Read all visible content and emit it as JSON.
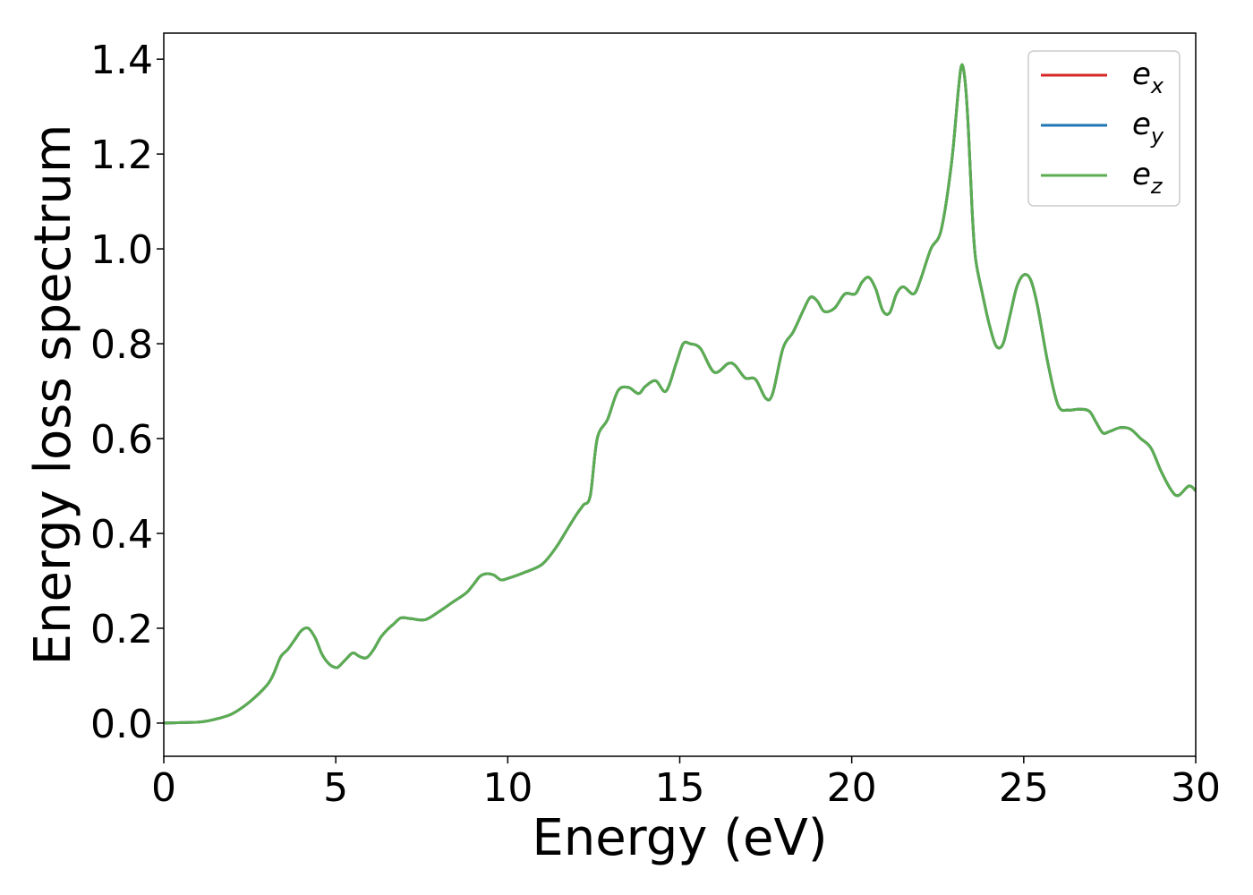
{
  "chart_data": {
    "type": "line",
    "xlabel": "Energy (eV)",
    "ylabel": "Energy loss spectrum",
    "xlim": [
      0,
      30
    ],
    "ylim": [
      -0.07,
      1.455
    ],
    "xticks": [
      0,
      5,
      10,
      15,
      20,
      25,
      30
    ],
    "xtick_labels": [
      "0",
      "5",
      "10",
      "15",
      "20",
      "25",
      "30"
    ],
    "yticks": [
      0.0,
      0.2,
      0.4,
      0.6,
      0.8,
      1.0,
      1.2,
      1.4
    ],
    "ytick_labels": [
      "0.0",
      "0.2",
      "0.4",
      "0.6",
      "0.8",
      "1.0",
      "1.2",
      "1.4"
    ],
    "grid": false,
    "legend_position": "top-right",
    "x": [
      0,
      0.5,
      1.0,
      1.3,
      1.6,
      2.0,
      2.5,
      3.0,
      3.2,
      3.4,
      3.6,
      3.8,
      4.0,
      4.2,
      4.4,
      4.6,
      4.8,
      5.0,
      5.1,
      5.3,
      5.5,
      5.7,
      5.9,
      6.1,
      6.3,
      6.5,
      6.7,
      6.9,
      7.2,
      7.6,
      8.0,
      8.4,
      8.8,
      9.0,
      9.2,
      9.4,
      9.6,
      9.8,
      10.0,
      10.5,
      11.0,
      11.4,
      11.7,
      12.0,
      12.2,
      12.4,
      12.6,
      12.9,
      13.2,
      13.5,
      13.8,
      14.0,
      14.3,
      14.6,
      14.9,
      15.1,
      15.3,
      15.6,
      16.0,
      16.4,
      16.6,
      16.9,
      17.2,
      17.5,
      17.7,
      18.0,
      18.3,
      18.6,
      18.8,
      19.0,
      19.2,
      19.5,
      19.8,
      20.1,
      20.3,
      20.5,
      20.7,
      20.9,
      21.1,
      21.3,
      21.5,
      21.8,
      22.0,
      22.3,
      22.6,
      22.9,
      23.1,
      23.2,
      23.3,
      23.4,
      23.5,
      23.6,
      23.8,
      24.0,
      24.2,
      24.4,
      24.6,
      24.8,
      25.0,
      25.2,
      25.4,
      25.7,
      26.0,
      26.3,
      26.6,
      26.9,
      27.1,
      27.3,
      27.5,
      27.8,
      28.1,
      28.4,
      28.7,
      29.0,
      29.3,
      29.5,
      29.8,
      30.0
    ],
    "series": [
      {
        "name": "ex",
        "color": "#d62728",
        "values": [
          0,
          0.001,
          0.002,
          0.005,
          0.01,
          0.02,
          0.045,
          0.08,
          0.105,
          0.14,
          0.155,
          0.175,
          0.195,
          0.2,
          0.18,
          0.145,
          0.125,
          0.117,
          0.12,
          0.135,
          0.148,
          0.14,
          0.138,
          0.155,
          0.18,
          0.197,
          0.21,
          0.222,
          0.22,
          0.218,
          0.235,
          0.255,
          0.275,
          0.292,
          0.31,
          0.315,
          0.312,
          0.302,
          0.305,
          0.318,
          0.335,
          0.37,
          0.405,
          0.44,
          0.46,
          0.48,
          0.6,
          0.64,
          0.7,
          0.708,
          0.695,
          0.71,
          0.722,
          0.7,
          0.76,
          0.8,
          0.8,
          0.79,
          0.74,
          0.758,
          0.755,
          0.728,
          0.725,
          0.685,
          0.695,
          0.79,
          0.825,
          0.872,
          0.898,
          0.89,
          0.868,
          0.875,
          0.905,
          0.905,
          0.93,
          0.94,
          0.915,
          0.87,
          0.865,
          0.905,
          0.92,
          0.905,
          0.935,
          1.0,
          1.04,
          1.18,
          1.335,
          1.388,
          1.35,
          1.24,
          1.08,
          0.98,
          0.905,
          0.84,
          0.795,
          0.8,
          0.86,
          0.92,
          0.945,
          0.935,
          0.88,
          0.76,
          0.67,
          0.66,
          0.662,
          0.658,
          0.635,
          0.612,
          0.615,
          0.623,
          0.62,
          0.6,
          0.58,
          0.53,
          0.49,
          0.48,
          0.5,
          0.49
        ]
      },
      {
        "name": "ey",
        "color": "#1f77b4",
        "values": [
          0,
          0.001,
          0.002,
          0.005,
          0.01,
          0.02,
          0.045,
          0.08,
          0.105,
          0.14,
          0.155,
          0.175,
          0.195,
          0.2,
          0.18,
          0.145,
          0.125,
          0.117,
          0.12,
          0.135,
          0.148,
          0.14,
          0.138,
          0.155,
          0.18,
          0.197,
          0.21,
          0.222,
          0.22,
          0.218,
          0.235,
          0.255,
          0.275,
          0.292,
          0.31,
          0.315,
          0.312,
          0.302,
          0.305,
          0.318,
          0.335,
          0.37,
          0.405,
          0.44,
          0.46,
          0.48,
          0.6,
          0.64,
          0.7,
          0.708,
          0.695,
          0.71,
          0.722,
          0.7,
          0.76,
          0.8,
          0.8,
          0.79,
          0.74,
          0.758,
          0.755,
          0.728,
          0.725,
          0.685,
          0.695,
          0.79,
          0.825,
          0.872,
          0.898,
          0.89,
          0.868,
          0.875,
          0.905,
          0.905,
          0.93,
          0.94,
          0.915,
          0.87,
          0.865,
          0.905,
          0.92,
          0.905,
          0.935,
          1.0,
          1.04,
          1.18,
          1.335,
          1.388,
          1.35,
          1.24,
          1.08,
          0.98,
          0.905,
          0.84,
          0.795,
          0.8,
          0.86,
          0.92,
          0.945,
          0.935,
          0.88,
          0.76,
          0.67,
          0.66,
          0.662,
          0.658,
          0.635,
          0.612,
          0.615,
          0.623,
          0.62,
          0.6,
          0.58,
          0.53,
          0.49,
          0.48,
          0.5,
          0.49
        ]
      },
      {
        "name": "ez",
        "color": "#5aad50",
        "values": [
          0,
          0.001,
          0.002,
          0.005,
          0.01,
          0.02,
          0.045,
          0.08,
          0.105,
          0.14,
          0.155,
          0.175,
          0.195,
          0.2,
          0.18,
          0.145,
          0.125,
          0.117,
          0.12,
          0.135,
          0.148,
          0.14,
          0.138,
          0.155,
          0.18,
          0.197,
          0.21,
          0.222,
          0.22,
          0.218,
          0.235,
          0.255,
          0.275,
          0.292,
          0.31,
          0.315,
          0.312,
          0.302,
          0.305,
          0.318,
          0.335,
          0.37,
          0.405,
          0.44,
          0.46,
          0.48,
          0.6,
          0.64,
          0.7,
          0.708,
          0.695,
          0.71,
          0.722,
          0.7,
          0.76,
          0.8,
          0.8,
          0.79,
          0.74,
          0.758,
          0.755,
          0.728,
          0.725,
          0.685,
          0.695,
          0.79,
          0.825,
          0.872,
          0.898,
          0.89,
          0.868,
          0.875,
          0.905,
          0.905,
          0.93,
          0.94,
          0.915,
          0.87,
          0.865,
          0.905,
          0.92,
          0.905,
          0.935,
          1.0,
          1.04,
          1.18,
          1.335,
          1.388,
          1.35,
          1.24,
          1.08,
          0.98,
          0.905,
          0.84,
          0.795,
          0.8,
          0.86,
          0.92,
          0.945,
          0.935,
          0.88,
          0.76,
          0.67,
          0.66,
          0.662,
          0.658,
          0.635,
          0.612,
          0.615,
          0.623,
          0.62,
          0.6,
          0.58,
          0.53,
          0.49,
          0.48,
          0.5,
          0.49
        ]
      }
    ],
    "legend": [
      {
        "base": "e",
        "sub": "x"
      },
      {
        "base": "e",
        "sub": "y"
      },
      {
        "base": "e",
        "sub": "z"
      }
    ]
  }
}
